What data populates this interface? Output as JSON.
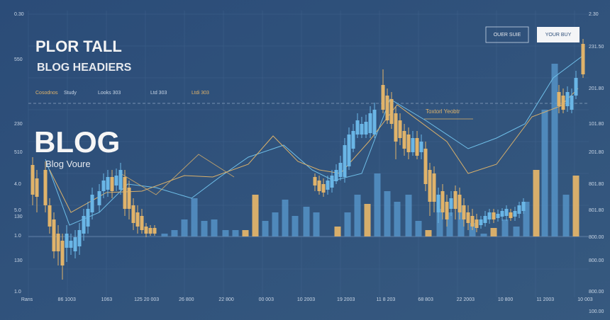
{
  "header": {
    "kicker": "PLOR TALL",
    "subtitle": "BLOG HEADIERS",
    "title": "BLOG",
    "tagline": "Blog Voure"
  },
  "tabs": [
    "Cosodnos",
    "Study",
    "Looks 303",
    "Ltd 303",
    "Ltdi 303"
  ],
  "buttons": [
    "OUER SUIE",
    "YOUR BUY"
  ],
  "annotation": "Toxtorl Yeobtr",
  "left_axis": [
    "0.30",
    "550",
    "230",
    "510",
    "4.0",
    "5.0",
    "130",
    "1.0",
    "130",
    "1.0"
  ],
  "right_axis": [
    "2.30",
    "231.50",
    "201.80",
    "101.80",
    "201.80",
    "801.80",
    "801.80",
    "800.00",
    "800.00",
    "800.00",
    "100.00"
  ],
  "bottom_axis": [
    "Rans",
    "86 1003",
    "1063",
    "125 20 003",
    "26 800",
    "22 800",
    "00 003",
    "10 2003",
    "19 2003",
    "11 8 203",
    "68 803",
    "22 2003",
    "10 800",
    "11 2003",
    "10 003"
  ]
}
